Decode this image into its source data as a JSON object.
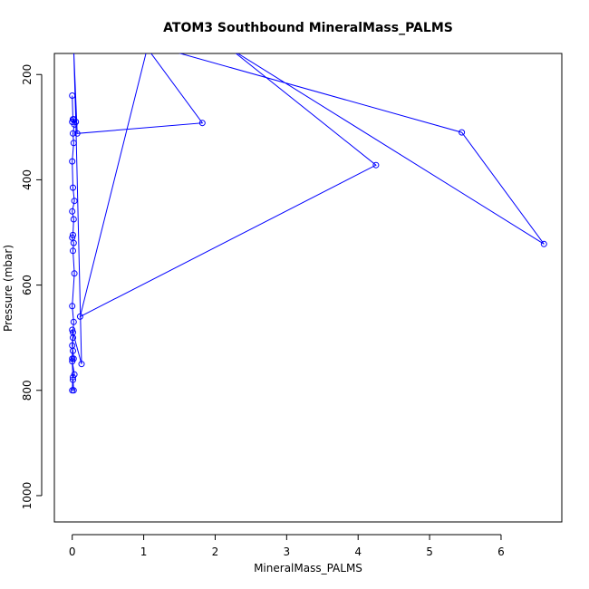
{
  "chart_data": {
    "type": "line",
    "title": "ATOM3 Southbound MineralMass_PALMS",
    "xlabel": "MineralMass_PALMS",
    "ylabel": "Pressure (mbar)",
    "xlim": [
      -0.25,
      6.85
    ],
    "ylim": [
      1050,
      160
    ],
    "y_reversed": true,
    "grid": false,
    "legend": "none",
    "x_ticks": [
      0,
      1,
      2,
      3,
      4,
      5,
      6
    ],
    "x_tick_labels": [
      "0",
      "1",
      "2",
      "3",
      "4",
      "5",
      "6"
    ],
    "y_ticks": [
      200,
      400,
      600,
      800,
      1000
    ],
    "y_tick_labels": [
      "200",
      "400",
      "600",
      "800",
      "1000"
    ],
    "series": [
      {
        "color": "#0000ff",
        "marker": "open-circle",
        "x": [
          0.0,
          0.01,
          0.0,
          0.02,
          0.03,
          0.01,
          0.02,
          0.0,
          0.01,
          0.03,
          0.0,
          0.02,
          0.01,
          0.0,
          0.02,
          0.01,
          0.03,
          0.0,
          0.02,
          0.01,
          0.0,
          0.01,
          0.02,
          0.0,
          0.03,
          0.01,
          0.0,
          0.02,
          0.01,
          0.0,
          0.01,
          0.0,
          0.13,
          0.05,
          0.02,
          0.07,
          1.82,
          1.05,
          0.11,
          4.25,
          2.2,
          6.6,
          5.45,
          1.25,
          0.09,
          0.05
        ],
        "y": [
          240,
          285,
          290,
          285,
          295,
          312,
          330,
          365,
          415,
          440,
          460,
          475,
          505,
          510,
          520,
          535,
          578,
          640,
          670,
          690,
          715,
          725,
          740,
          745,
          770,
          775,
          800,
          800,
          780,
          740,
          700,
          685,
          750,
          290,
          150,
          312,
          292,
          150,
          660,
          372,
          150,
          522,
          310,
          150,
          150,
          150
        ]
      }
    ]
  }
}
